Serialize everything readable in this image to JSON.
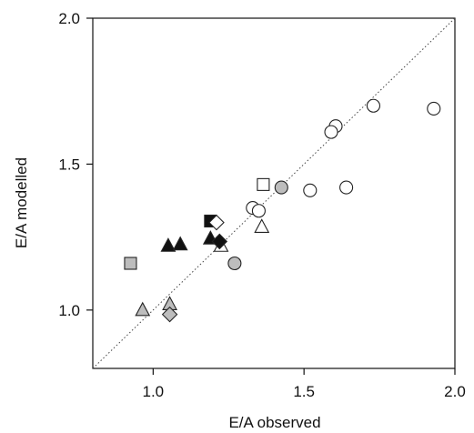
{
  "chart_data": {
    "type": "scatter",
    "xlabel": "E/A observed",
    "ylabel": "E/A modelled",
    "xlim": [
      0.8,
      2.0
    ],
    "ylim": [
      0.8,
      2.0
    ],
    "x_ticks": [
      "1.0",
      "1.5",
      "2.0"
    ],
    "y_ticks": [
      "1.0",
      "1.5",
      "2.0"
    ],
    "x_tick_values": [
      1.0,
      1.5,
      2.0
    ],
    "y_tick_values": [
      1.0,
      1.5,
      2.0
    ],
    "identity_line": true,
    "grid": false,
    "colors": {
      "white": "#ffffff",
      "grey": "#bdbdbd",
      "black": "#111111",
      "outline": "#222222",
      "line": "#444444"
    },
    "series": [
      {
        "marker": "circle",
        "fill": "white",
        "points": [
          [
            1.93,
            1.69
          ],
          [
            1.73,
            1.7
          ],
          [
            1.605,
            1.63
          ],
          [
            1.59,
            1.61
          ],
          [
            1.64,
            1.42
          ],
          [
            1.52,
            1.41
          ],
          [
            1.33,
            1.35
          ],
          [
            1.35,
            1.34
          ]
        ]
      },
      {
        "marker": "circle",
        "fill": "grey",
        "points": [
          [
            1.425,
            1.42
          ],
          [
            1.27,
            1.16
          ]
        ]
      },
      {
        "marker": "square",
        "fill": "white",
        "points": [
          [
            1.365,
            1.43
          ]
        ]
      },
      {
        "marker": "square",
        "fill": "grey",
        "points": [
          [
            0.925,
            1.16
          ]
        ]
      },
      {
        "marker": "square",
        "fill": "black",
        "points": [
          [
            1.19,
            1.305
          ]
        ]
      },
      {
        "marker": "triangle",
        "fill": "white",
        "points": [
          [
            1.36,
            1.285
          ],
          [
            1.225,
            1.22
          ]
        ]
      },
      {
        "marker": "triangle",
        "fill": "grey",
        "points": [
          [
            0.965,
            1.0
          ],
          [
            1.055,
            1.02
          ]
        ]
      },
      {
        "marker": "triangle",
        "fill": "black",
        "points": [
          [
            1.05,
            1.22
          ],
          [
            1.09,
            1.225
          ],
          [
            1.19,
            1.245
          ]
        ]
      },
      {
        "marker": "diamond",
        "fill": "white",
        "points": [
          [
            1.21,
            1.3
          ]
        ]
      },
      {
        "marker": "diamond",
        "fill": "grey",
        "points": [
          [
            1.055,
            0.985
          ]
        ]
      },
      {
        "marker": "diamond",
        "fill": "black",
        "points": [
          [
            1.22,
            1.235
          ]
        ]
      }
    ]
  }
}
